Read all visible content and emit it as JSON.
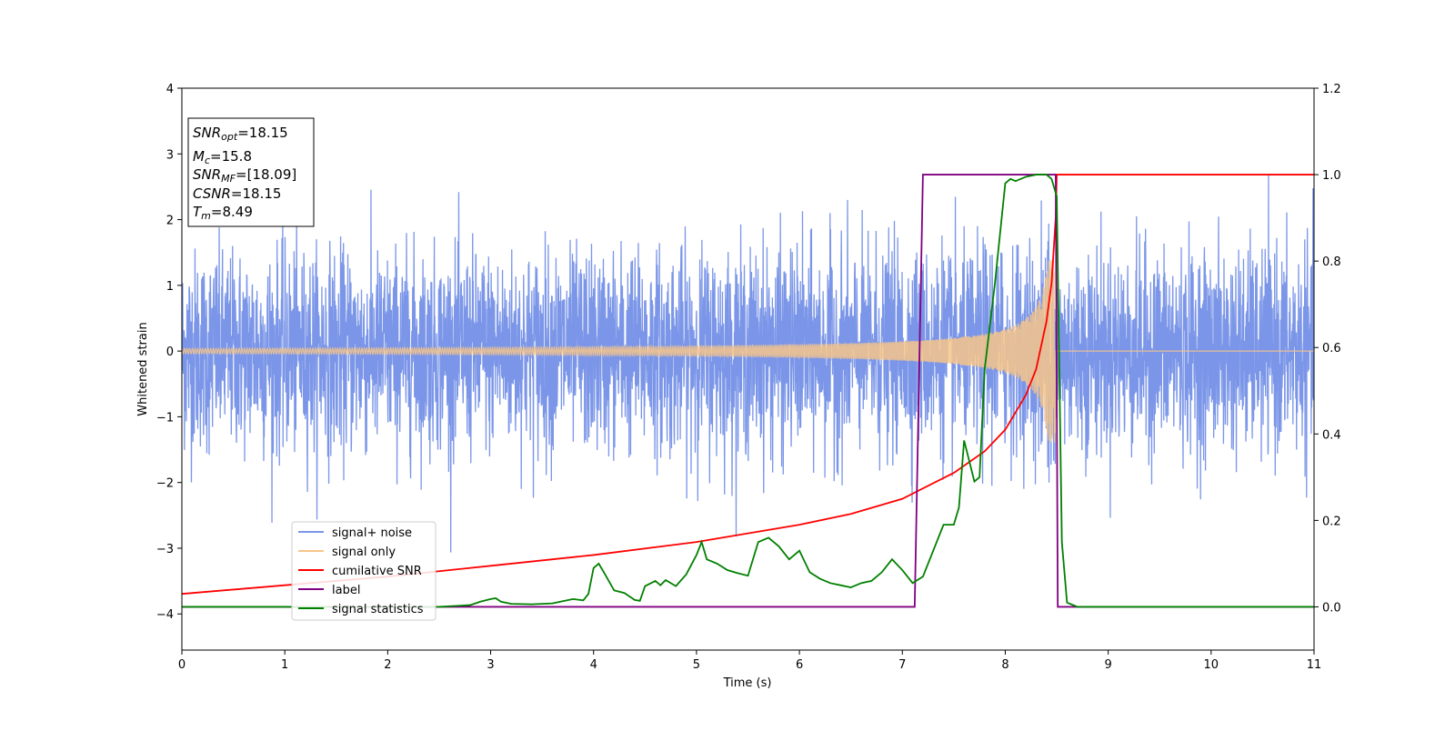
{
  "chart_data": {
    "type": "line",
    "xlabel": "Time (s)",
    "ylabel": "Whitened strain",
    "xlim": [
      0,
      11
    ],
    "ylim_left": [
      -4.55,
      4
    ],
    "ylim_right": [
      -0.1,
      1.2
    ],
    "x_ticks": [
      "0",
      "1",
      "2",
      "3",
      "4",
      "5",
      "6",
      "7",
      "8",
      "9",
      "10",
      "11"
    ],
    "y_ticks_left": [
      "4",
      "3",
      "2",
      "1",
      "0",
      "−1",
      "−2",
      "−3",
      "−4"
    ],
    "y_ticks_right": [
      "1.2",
      "1.0",
      "0.8",
      "0.6",
      "0.4",
      "0.2",
      "0.0"
    ],
    "grid": false,
    "legend_placement": "lower-left",
    "colors": {
      "signal_noise": "#7b96e8",
      "signal_only": "#f7c58a",
      "cumulative_snr": "#ff0000",
      "label": "#800080",
      "signal_statistics": "#008000"
    },
    "info_box": {
      "snr_opt": {
        "main": "SNR",
        "sub": "opt",
        "value": "=18.15"
      },
      "mc": {
        "main": "M",
        "sub": "c",
        "value": "=15.8"
      },
      "snr_mf": {
        "main": "SNR",
        "sub": "MF",
        "value": "=[18.09]"
      },
      "csnr": {
        "main": "CSNR",
        "value": "=18.15"
      },
      "tm": {
        "main": "T",
        "sub": "m",
        "value": "=8.49"
      }
    },
    "series": [
      {
        "name": "signal+ noise",
        "axis": "left",
        "description_values": {
          "std": 0.75,
          "peak_max": 3.55,
          "peak_min": -4.15,
          "duration": [
            0,
            11
          ]
        }
      },
      {
        "name": "signal only",
        "axis": "left",
        "chirp": {
          "t_merge": 8.49,
          "amp_start": 0.04,
          "amp_end": 1.4,
          "freq_start": 25,
          "freq_end": 120
        }
      },
      {
        "name": "cumilative SNR",
        "axis": "right",
        "x": [
          0,
          1,
          2,
          3,
          4,
          5,
          6,
          6.5,
          7,
          7.5,
          7.8,
          8.0,
          8.2,
          8.3,
          8.4,
          8.45,
          8.49,
          8.5,
          11
        ],
        "values": [
          0.03,
          0.05,
          0.07,
          0.095,
          0.12,
          0.15,
          0.19,
          0.215,
          0.25,
          0.31,
          0.36,
          0.41,
          0.49,
          0.55,
          0.66,
          0.75,
          0.9,
          1.0,
          1.0
        ]
      },
      {
        "name": "label",
        "axis": "right",
        "x": [
          0,
          7.12,
          7.2,
          8.49,
          8.51,
          11
        ],
        "values": [
          0,
          0,
          1,
          1,
          0,
          0
        ]
      },
      {
        "name": "signal statistics",
        "axis": "right",
        "x": [
          0,
          2.5,
          2.8,
          2.9,
          3.0,
          3.05,
          3.1,
          3.2,
          3.4,
          3.6,
          3.7,
          3.8,
          3.9,
          3.95,
          4.0,
          4.05,
          4.1,
          4.2,
          4.3,
          4.4,
          4.45,
          4.5,
          4.6,
          4.65,
          4.7,
          4.8,
          4.9,
          5.0,
          5.05,
          5.1,
          5.2,
          5.3,
          5.4,
          5.5,
          5.6,
          5.7,
          5.8,
          5.9,
          6.0,
          6.1,
          6.2,
          6.3,
          6.4,
          6.5,
          6.6,
          6.7,
          6.8,
          6.9,
          7.0,
          7.1,
          7.2,
          7.3,
          7.4,
          7.5,
          7.55,
          7.6,
          7.7,
          7.75,
          7.8,
          7.9,
          8.0,
          8.05,
          8.1,
          8.2,
          8.3,
          8.4,
          8.45,
          8.5,
          8.55,
          8.6,
          8.7,
          11
        ],
        "values": [
          0,
          0,
          0.004,
          0.012,
          0.018,
          0.02,
          0.012,
          0.007,
          0.006,
          0.008,
          0.013,
          0.018,
          0.015,
          0.03,
          0.09,
          0.1,
          0.08,
          0.038,
          0.032,
          0.016,
          0.014,
          0.048,
          0.06,
          0.05,
          0.062,
          0.048,
          0.075,
          0.12,
          0.15,
          0.11,
          0.1,
          0.085,
          0.078,
          0.072,
          0.15,
          0.16,
          0.14,
          0.11,
          0.13,
          0.08,
          0.065,
          0.055,
          0.05,
          0.045,
          0.055,
          0.06,
          0.08,
          0.11,
          0.085,
          0.055,
          0.07,
          0.13,
          0.19,
          0.19,
          0.23,
          0.385,
          0.29,
          0.3,
          0.55,
          0.75,
          0.98,
          0.99,
          0.985,
          0.995,
          1.0,
          1.0,
          0.99,
          0.95,
          0.15,
          0.01,
          0.0,
          0.0
        ]
      }
    ]
  }
}
